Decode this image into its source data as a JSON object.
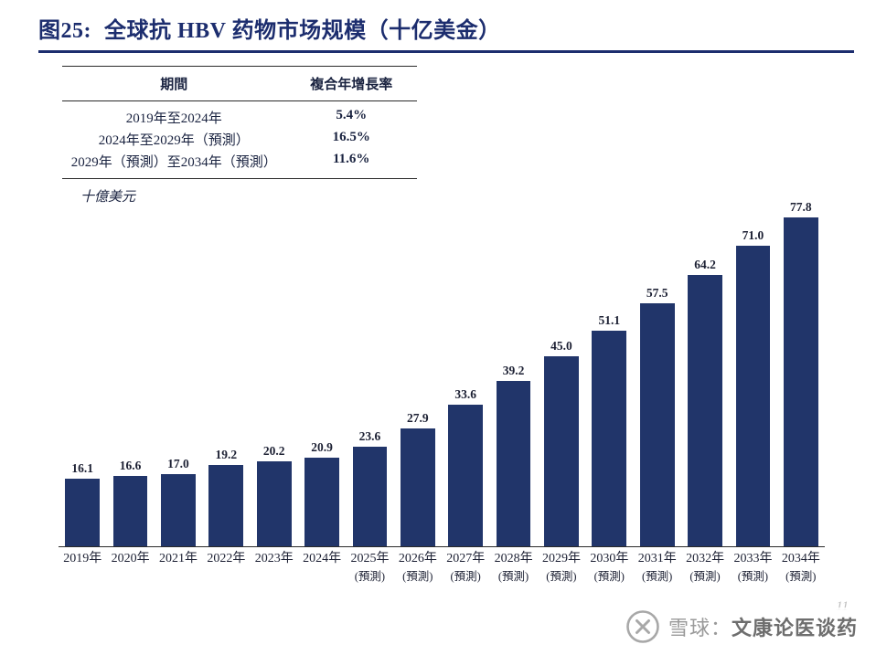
{
  "figure": {
    "title_prefix": "图25:",
    "title_main": "全球抗 HBV 药物市场规模（十亿美金）"
  },
  "table": {
    "header_period": "期間",
    "header_cagr": "複合年增長率",
    "rows": [
      {
        "period": "2019年至2024年",
        "cagr": "5.4%"
      },
      {
        "period": "2024年至2029年（預測）",
        "cagr": "16.5%"
      },
      {
        "period": "2029年（預測）至2034年（預測）",
        "cagr": "11.6%"
      }
    ]
  },
  "chart_data": {
    "type": "bar",
    "title": "全球抗 HBV 药物市场规模（十亿美金）",
    "unit_label": "十億美元",
    "ylabel": "十億美元",
    "categories": [
      "2019年",
      "2020年",
      "2021年",
      "2022年",
      "2023年",
      "2024年",
      "2025年",
      "2026年",
      "2027年",
      "2028年",
      "2029年",
      "2030年",
      "2031年",
      "2032年",
      "2033年",
      "2034年"
    ],
    "forecast": [
      false,
      false,
      false,
      false,
      false,
      false,
      true,
      true,
      true,
      true,
      true,
      true,
      true,
      true,
      true,
      true
    ],
    "forecast_suffix": "(預測)",
    "values": [
      16.1,
      16.6,
      17.0,
      19.2,
      20.2,
      20.9,
      23.6,
      27.9,
      33.6,
      39.2,
      45.0,
      51.1,
      57.5,
      64.2,
      71.0,
      77.8
    ],
    "ylim": [
      0,
      80
    ],
    "grid": false,
    "legend": "none",
    "bar_color": "#21356a"
  },
  "watermark": {
    "prefix": "雪球：",
    "name": "文康论医谈药"
  },
  "page_number": "11",
  "colors": {
    "title": "#1c2d6e",
    "bar": "#21356a",
    "text": "#1c2033",
    "watermark": "#9a9a9a"
  }
}
